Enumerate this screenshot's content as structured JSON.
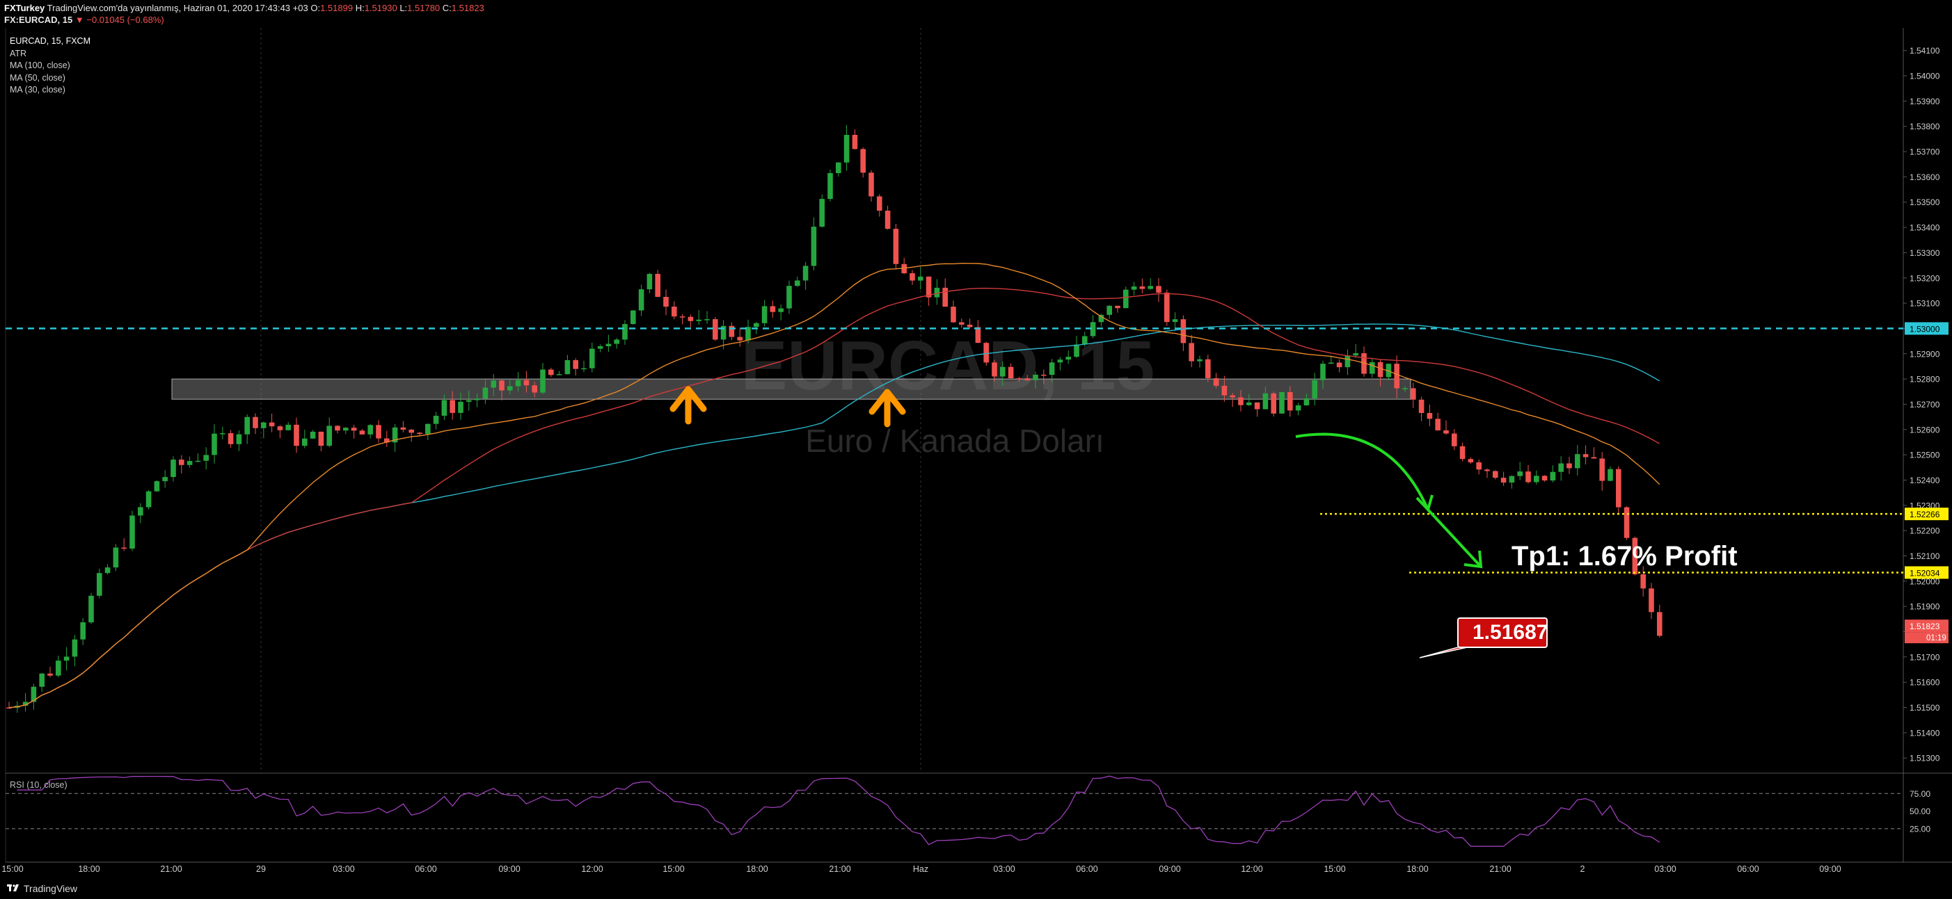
{
  "header": {
    "publisher": "FXTurkey",
    "published_text": "TradingView.com'da yayınlanmış, Haziran 01, 2020 17:43:43 +03",
    "symbol": "FX:EURCAD, 15",
    "change": "−0.01045 (−0.68%)",
    "o_key": "O:",
    "o_val": "1.51899",
    "h_key": "H:",
    "h_val": "1.51930",
    "l_key": "L:",
    "l_val": "1.51780",
    "c_key": "C:",
    "c_val": "1.51823"
  },
  "legend": {
    "symbol": "EURCAD, 15, FXCM",
    "items": [
      "ATR",
      "MA (100, close)",
      "MA (50, close)",
      "MA (30, close)"
    ]
  },
  "watermark": {
    "symbol": "EURCAD, 15",
    "name": "Euro / Kanada Doları"
  },
  "annotations": {
    "target_label": "Tp1: 1.67% Profit",
    "price_callout": "1.51687"
  },
  "footer": {
    "brand": "TradingView"
  },
  "colors": {
    "bull": "#26a63f",
    "bear": "#ef5350",
    "ma30": "#e8892a",
    "ma50": "#d03a3a",
    "ma100": "#2bb6c9",
    "rsi": "#9c3fb8",
    "level": "#2bc7d8",
    "target": "#ffee00",
    "arrow_up": "#ff9800",
    "arrow_curve": "#22dd22"
  },
  "chart_data": {
    "type": "candlestick",
    "title": "EURCAD, 15, FXCM",
    "price_axis": [
      "1.54100",
      "1.54000",
      "1.53900",
      "1.53800",
      "1.53700",
      "1.53600",
      "1.53500",
      "1.53400",
      "1.53300",
      "1.53200",
      "1.53100",
      "1.53000",
      "1.52900",
      "1.52800",
      "1.52700",
      "1.52600",
      "1.52500",
      "1.52400",
      "1.52300",
      "1.52200",
      "1.52100",
      "1.52000",
      "1.51900",
      "1.51800",
      "1.51700",
      "1.51600",
      "1.51500",
      "1.51400",
      "1.51300"
    ],
    "time_axis": [
      "15:00",
      "18:00",
      "21:00",
      "29",
      "03:00",
      "06:00",
      "09:00",
      "12:00",
      "15:00",
      "18:00",
      "21:00",
      "Haz",
      "03:00",
      "06:00",
      "09:00",
      "12:00",
      "15:00",
      "18:00",
      "21:00",
      "2",
      "03:00",
      "06:00",
      "09:00"
    ],
    "ylim": [
      1.5124,
      1.5419
    ],
    "price_tags": [
      {
        "value": 1.53,
        "label": "1.53000",
        "kind": "level"
      },
      {
        "value": 1.52266,
        "label": "1.52266",
        "kind": "target"
      },
      {
        "value": 1.52034,
        "label": "1.52034",
        "kind": "target"
      },
      {
        "value": 1.51823,
        "label": "1.51823",
        "kind": "last"
      }
    ],
    "countdown": "01:19",
    "support_zone": [
      1.5272,
      1.528
    ],
    "levels": [
      {
        "name": "resistance",
        "value": 1.53
      },
      {
        "name": "target 1",
        "value": 1.52266
      },
      {
        "name": "target 2",
        "value": 1.52034
      }
    ],
    "close_path": [
      {
        "t": 0,
        "c": 1.515
      },
      {
        "t": 6,
        "c": 1.5168
      },
      {
        "t": 12,
        "c": 1.5205
      },
      {
        "t": 18,
        "c": 1.524
      },
      {
        "t": 24,
        "c": 1.5252
      },
      {
        "t": 30,
        "c": 1.5265
      },
      {
        "t": 36,
        "c": 1.5255
      },
      {
        "t": 42,
        "c": 1.5262
      },
      {
        "t": 48,
        "c": 1.5258
      },
      {
        "t": 54,
        "c": 1.527
      },
      {
        "t": 60,
        "c": 1.5276
      },
      {
        "t": 66,
        "c": 1.528
      },
      {
        "t": 72,
        "c": 1.529
      },
      {
        "t": 78,
        "c": 1.5318
      },
      {
        "t": 84,
        "c": 1.53
      },
      {
        "t": 90,
        "c": 1.5298
      },
      {
        "t": 96,
        "c": 1.5318
      },
      {
        "t": 102,
        "c": 1.5378
      },
      {
        "t": 108,
        "c": 1.533
      },
      {
        "t": 114,
        "c": 1.5308
      },
      {
        "t": 120,
        "c": 1.5285
      },
      {
        "t": 126,
        "c": 1.5282
      },
      {
        "t": 132,
        "c": 1.53
      },
      {
        "t": 138,
        "c": 1.532
      },
      {
        "t": 144,
        "c": 1.529
      },
      {
        "t": 150,
        "c": 1.5272
      },
      {
        "t": 156,
        "c": 1.527
      },
      {
        "t": 162,
        "c": 1.5288
      },
      {
        "t": 168,
        "c": 1.5282
      },
      {
        "t": 174,
        "c": 1.5258
      },
      {
        "t": 180,
        "c": 1.5245
      },
      {
        "t": 186,
        "c": 1.5238
      },
      {
        "t": 192,
        "c": 1.525
      },
      {
        "t": 195,
        "c": 1.524
      },
      {
        "t": 198,
        "c": 1.52
      },
      {
        "t": 201,
        "c": 1.5182
      }
    ],
    "rsi": {
      "name": "RSI (10, close)",
      "levels": [
        75,
        25
      ],
      "ticks": [
        "75.00",
        "50.00",
        "25.00"
      ]
    },
    "moving_averages": [
      "MA (30, close)",
      "MA (50, close)",
      "MA (100, close)"
    ]
  }
}
